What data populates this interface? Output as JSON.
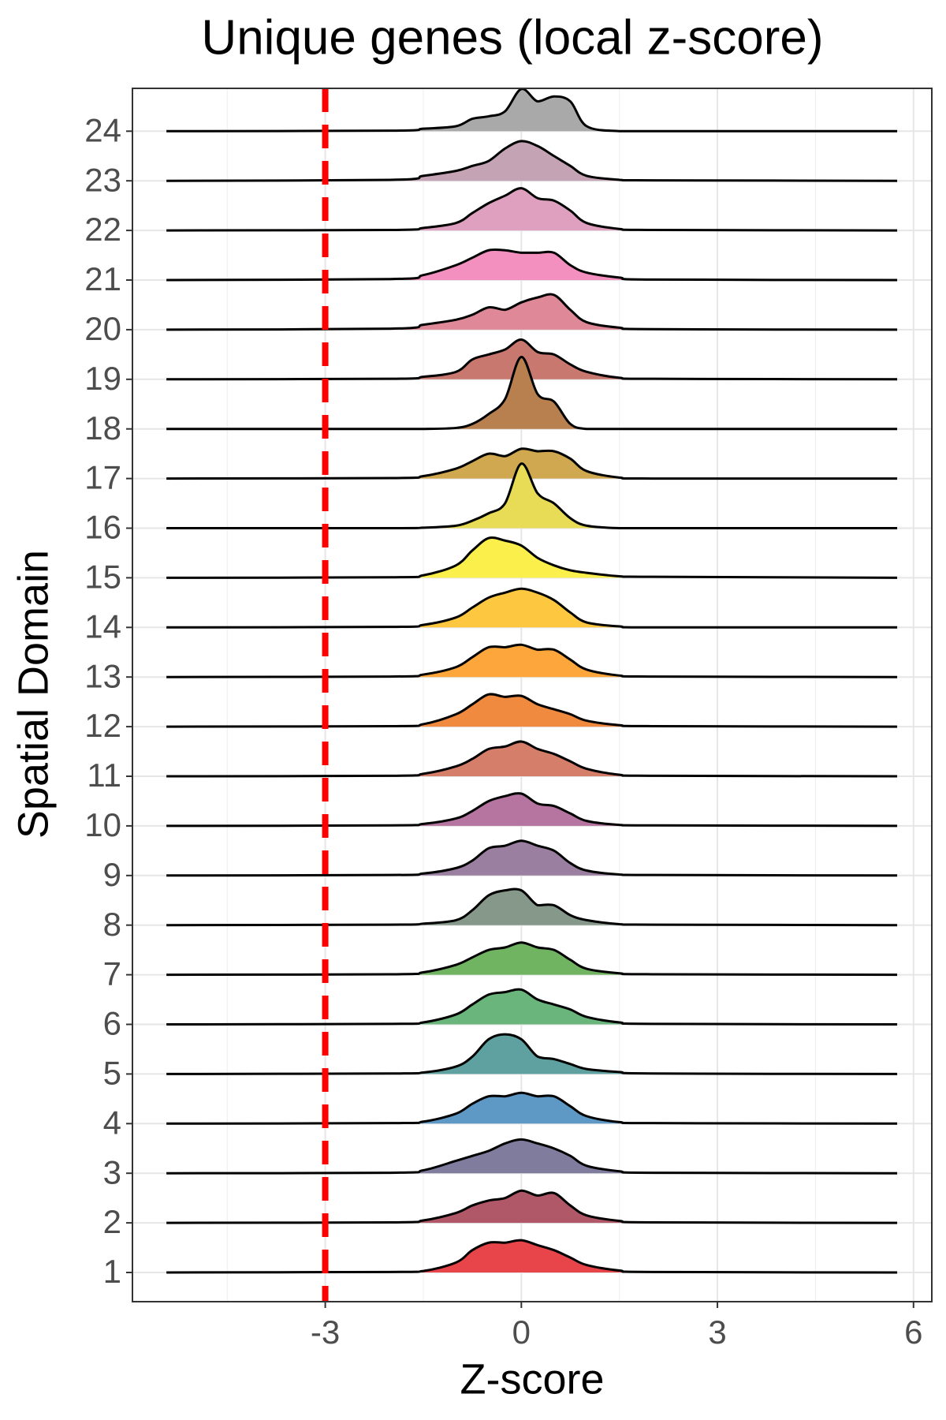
{
  "chart_data": {
    "type": "ridgeline",
    "title": "Unique genes (local z-score)",
    "xlabel": "Z-score",
    "ylabel": "Spatial Domain",
    "xlim": [
      -5.95,
      6.28
    ],
    "xticks": [
      -3,
      0,
      3,
      6
    ],
    "grid": true,
    "vline": {
      "value": -3,
      "color": "#ff0000"
    },
    "categories": [
      "1",
      "2",
      "3",
      "4",
      "5",
      "6",
      "7",
      "8",
      "9",
      "10",
      "11",
      "12",
      "13",
      "14",
      "15",
      "16",
      "17",
      "18",
      "19",
      "20",
      "21",
      "22",
      "23",
      "24"
    ],
    "x": [
      -5.43,
      -2,
      -1.5,
      -1,
      -0.75,
      -0.5,
      -0.25,
      0,
      0.25,
      0.5,
      0.75,
      1,
      1.5,
      2,
      5.75
    ],
    "series": [
      {
        "color": "#e8454a",
        "values": [
          0,
          0.01,
          0.03,
          0.2,
          0.45,
          0.6,
          0.6,
          0.65,
          0.55,
          0.45,
          0.3,
          0.15,
          0.04,
          0.01,
          0
        ]
      },
      {
        "color": "#b05868",
        "values": [
          0,
          0.01,
          0.05,
          0.2,
          0.35,
          0.45,
          0.5,
          0.65,
          0.55,
          0.6,
          0.35,
          0.15,
          0.04,
          0.01,
          0
        ]
      },
      {
        "color": "#807c9e",
        "values": [
          0,
          0.01,
          0.06,
          0.25,
          0.35,
          0.45,
          0.6,
          0.68,
          0.6,
          0.5,
          0.35,
          0.15,
          0.04,
          0.01,
          0
        ]
      },
      {
        "color": "#5e98c4",
        "values": [
          0,
          0.01,
          0.04,
          0.2,
          0.4,
          0.55,
          0.55,
          0.62,
          0.55,
          0.55,
          0.35,
          0.15,
          0.03,
          0.01,
          0
        ]
      },
      {
        "color": "#5ea1a0",
        "values": [
          0,
          0.01,
          0.03,
          0.15,
          0.35,
          0.7,
          0.8,
          0.7,
          0.35,
          0.3,
          0.2,
          0.1,
          0.04,
          0.01,
          0
        ]
      },
      {
        "color": "#69b57c",
        "values": [
          0,
          0.01,
          0.04,
          0.2,
          0.4,
          0.6,
          0.65,
          0.7,
          0.5,
          0.4,
          0.3,
          0.15,
          0.04,
          0.01,
          0
        ]
      },
      {
        "color": "#70b462",
        "values": [
          0,
          0.01,
          0.05,
          0.2,
          0.35,
          0.5,
          0.55,
          0.65,
          0.55,
          0.5,
          0.3,
          0.12,
          0.03,
          0.01,
          0
        ]
      },
      {
        "color": "#86988a",
        "values": [
          0,
          0.01,
          0.03,
          0.1,
          0.3,
          0.6,
          0.7,
          0.7,
          0.4,
          0.4,
          0.2,
          0.1,
          0.02,
          0.01,
          0
        ]
      },
      {
        "color": "#9a7fa0",
        "values": [
          0,
          0.01,
          0.04,
          0.15,
          0.3,
          0.55,
          0.6,
          0.7,
          0.6,
          0.5,
          0.25,
          0.1,
          0.02,
          0.01,
          0
        ]
      },
      {
        "color": "#b575a0",
        "values": [
          0,
          0.01,
          0.04,
          0.15,
          0.3,
          0.5,
          0.6,
          0.65,
          0.45,
          0.4,
          0.25,
          0.1,
          0.02,
          0.01,
          0
        ]
      },
      {
        "color": "#d57e6a",
        "values": [
          0,
          0.01,
          0.05,
          0.2,
          0.35,
          0.55,
          0.6,
          0.7,
          0.55,
          0.45,
          0.3,
          0.15,
          0.03,
          0.01,
          0
        ]
      },
      {
        "color": "#ef8a3e",
        "values": [
          0,
          0.01,
          0.05,
          0.25,
          0.45,
          0.65,
          0.6,
          0.62,
          0.45,
          0.35,
          0.25,
          0.12,
          0.03,
          0.01,
          0
        ]
      },
      {
        "color": "#fda63c",
        "values": [
          0,
          0.01,
          0.05,
          0.2,
          0.4,
          0.6,
          0.6,
          0.65,
          0.55,
          0.55,
          0.35,
          0.15,
          0.03,
          0.01,
          0
        ]
      },
      {
        "color": "#fdc840",
        "values": [
          0,
          0.01,
          0.05,
          0.2,
          0.4,
          0.6,
          0.7,
          0.78,
          0.7,
          0.55,
          0.3,
          0.1,
          0.02,
          0,
          0
        ]
      },
      {
        "color": "#fbef4c",
        "values": [
          0,
          0.01,
          0.05,
          0.25,
          0.55,
          0.8,
          0.75,
          0.65,
          0.4,
          0.25,
          0.15,
          0.1,
          0.03,
          0.02,
          0
        ]
      },
      {
        "color": "#e8dc56",
        "values": [
          0,
          0,
          0.01,
          0.05,
          0.15,
          0.3,
          0.5,
          1.3,
          0.7,
          0.5,
          0.2,
          0.05,
          0,
          0,
          0
        ]
      },
      {
        "color": "#d0a84f",
        "values": [
          0,
          0.01,
          0.05,
          0.2,
          0.35,
          0.5,
          0.45,
          0.6,
          0.55,
          0.55,
          0.4,
          0.15,
          0.02,
          0,
          0
        ]
      },
      {
        "color": "#b8804e",
        "values": [
          0,
          0,
          0,
          0.02,
          0.1,
          0.3,
          0.6,
          1.45,
          0.7,
          0.55,
          0.1,
          0,
          0,
          0,
          0
        ]
      },
      {
        "color": "#c97870",
        "values": [
          0,
          0.01,
          0.05,
          0.15,
          0.4,
          0.5,
          0.6,
          0.8,
          0.55,
          0.5,
          0.3,
          0.15,
          0.03,
          0.01,
          0
        ]
      },
      {
        "color": "#de8898",
        "values": [
          0,
          0.02,
          0.1,
          0.2,
          0.3,
          0.45,
          0.4,
          0.55,
          0.65,
          0.7,
          0.4,
          0.15,
          0.04,
          0.01,
          0
        ]
      },
      {
        "color": "#f390c0",
        "values": [
          0,
          0.02,
          0.1,
          0.3,
          0.45,
          0.6,
          0.6,
          0.55,
          0.55,
          0.55,
          0.3,
          0.15,
          0.05,
          0.01,
          0
        ]
      },
      {
        "color": "#dfa0c0",
        "values": [
          0,
          0.01,
          0.05,
          0.15,
          0.35,
          0.55,
          0.7,
          0.85,
          0.65,
          0.6,
          0.4,
          0.15,
          0.03,
          0.01,
          0
        ]
      },
      {
        "color": "#c4a4b4",
        "values": [
          0,
          0.02,
          0.1,
          0.2,
          0.3,
          0.4,
          0.65,
          0.8,
          0.7,
          0.5,
          0.3,
          0.1,
          0.02,
          0.01,
          0
        ]
      },
      {
        "color": "#a9a9a9",
        "values": [
          0,
          0.01,
          0.05,
          0.1,
          0.25,
          0.3,
          0.4,
          0.85,
          0.6,
          0.7,
          0.6,
          0.1,
          0,
          0,
          0
        ]
      }
    ]
  }
}
